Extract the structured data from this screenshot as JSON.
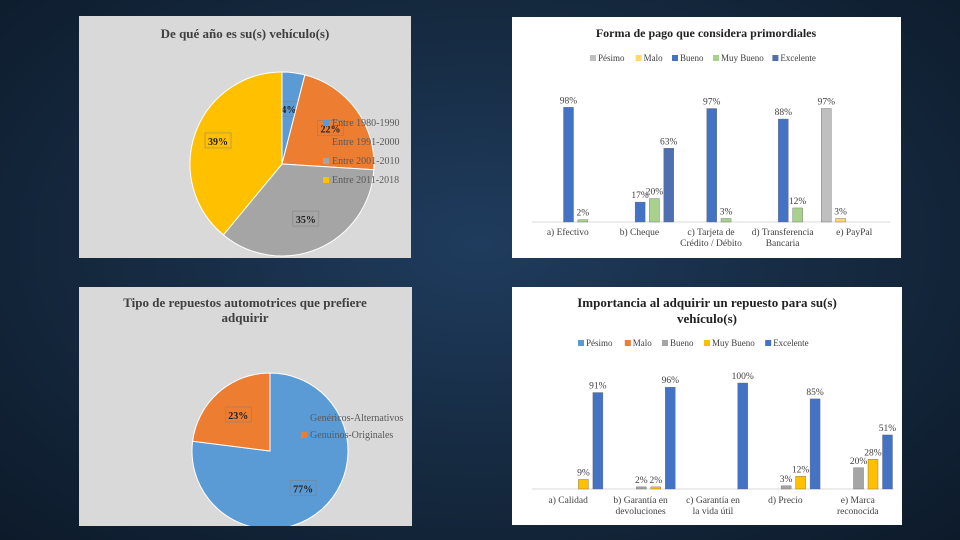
{
  "chart_data": [
    {
      "id": "p1",
      "type": "pie",
      "title": "De qué año es su(s) vehículo(s)",
      "categories": [
        "Entre 1980-1990",
        "Entre 1991-2000",
        "Entre 2001-2010",
        "Entre 2011-2018"
      ],
      "values": [
        4,
        22,
        35,
        39
      ],
      "data_labels": [
        "4%",
        "22%",
        "35%",
        "39%"
      ],
      "colors": [
        "#5b9bd5",
        "#ed7d31",
        "#a5a5a5",
        "#ffc000"
      ],
      "legend_position": "right",
      "background": "#d9d9d9"
    },
    {
      "id": "p2",
      "type": "bar",
      "title": "Forma de pago que considera primordiales",
      "legend_position": "top",
      "series": [
        {
          "name": "Pésimo",
          "color": "#bfbfbf",
          "values": [
            null,
            null,
            null,
            null,
            97
          ]
        },
        {
          "name": "Malo",
          "color": "#ffd966",
          "values": [
            null,
            null,
            null,
            null,
            3
          ]
        },
        {
          "name": "Bueno",
          "color": "#4472c4",
          "values": [
            98,
            17,
            97,
            88,
            null
          ]
        },
        {
          "name": "Muy Bueno",
          "color": "#a9d18e",
          "values": [
            2,
            20,
            3,
            12,
            null
          ]
        },
        {
          "name": "Excelente",
          "color": "#4f6fb0",
          "values": [
            null,
            63,
            null,
            null,
            null
          ]
        }
      ],
      "bars": [
        {
          "cat": 0,
          "series": 3,
          "value": 2,
          "label": "2%"
        },
        {
          "cat": 0,
          "series": 2,
          "value": 98,
          "label": "98%"
        },
        {
          "cat": 1,
          "series": 2,
          "value": 17,
          "label": "17%"
        },
        {
          "cat": 1,
          "series": 3,
          "value": 20,
          "label": "20%"
        },
        {
          "cat": 1,
          "series": 4,
          "value": 63,
          "label": "63%"
        },
        {
          "cat": 2,
          "series": 3,
          "value": 3,
          "label": "3%"
        },
        {
          "cat": 2,
          "series": 2,
          "value": 97,
          "label": "97%"
        },
        {
          "cat": 3,
          "series": 3,
          "value": 12,
          "label": "12%"
        },
        {
          "cat": 3,
          "series": 2,
          "value": 88,
          "label": "88%"
        },
        {
          "cat": 4,
          "series": 0,
          "value": 97,
          "label": "97%"
        },
        {
          "cat": 4,
          "series": 1,
          "value": 3,
          "label": "3%"
        }
      ],
      "categories": [
        [
          "a) Efectivo"
        ],
        [
          "b) Cheque"
        ],
        [
          "c) Tarjeta de",
          "Crédito / Débito"
        ],
        [
          "d) Transferencia",
          "Bancaria"
        ],
        [
          "e) PayPal"
        ]
      ],
      "ylim": [
        0,
        100
      ],
      "background": "#ffffff"
    },
    {
      "id": "p3",
      "type": "pie",
      "title_lines": [
        "Tipo de repuestos automotrices que prefiere",
        "adquirir"
      ],
      "categories": [
        "Genéricos-Alternativos",
        "Genuinos-Originales"
      ],
      "values": [
        77,
        23
      ],
      "data_labels": [
        "77%",
        "23%"
      ],
      "colors": [
        "#5b9bd5",
        "#ed7d31"
      ],
      "legend_position": "right",
      "background": "#d9d9d9"
    },
    {
      "id": "p4",
      "type": "bar",
      "title_lines": [
        "Importancia  al adquirir un repuesto para su(s)",
        "vehículo(s)"
      ],
      "legend_position": "top",
      "series": [
        {
          "name": "Pésimo",
          "color": "#5b9bd5"
        },
        {
          "name": "Malo",
          "color": "#ed7d31"
        },
        {
          "name": "Bueno",
          "color": "#a5a5a5"
        },
        {
          "name": "Muy Bueno",
          "color": "#ffc000"
        },
        {
          "name": "Excelente",
          "color": "#4472c4"
        }
      ],
      "bars": [
        {
          "cat": 0,
          "series": 3,
          "value": 9,
          "label": "9%"
        },
        {
          "cat": 0,
          "series": 4,
          "value": 91,
          "label": "91%"
        },
        {
          "cat": 1,
          "series": 2,
          "value": 2,
          "label": "2%"
        },
        {
          "cat": 1,
          "series": 3,
          "value": 2,
          "label": "2%"
        },
        {
          "cat": 1,
          "series": 4,
          "value": 96,
          "label": "96%"
        },
        {
          "cat": 2,
          "series": 4,
          "value": 100,
          "label": "100%"
        },
        {
          "cat": 3,
          "series": 2,
          "value": 3,
          "label": "3%"
        },
        {
          "cat": 3,
          "series": 3,
          "value": 12,
          "label": "12%"
        },
        {
          "cat": 3,
          "series": 4,
          "value": 85,
          "label": "85%"
        },
        {
          "cat": 4,
          "series": 2,
          "value": 20,
          "label": "20%"
        },
        {
          "cat": 4,
          "series": 3,
          "value": 28,
          "label": "28%"
        },
        {
          "cat": 4,
          "series": 4,
          "value": 51,
          "label": "51%"
        }
      ],
      "categories": [
        [
          "a) Calidad"
        ],
        [
          "b) Garantía en",
          "devoluciones"
        ],
        [
          "c) Garantía en",
          "la vida útil"
        ],
        [
          "d) Precio"
        ],
        [
          "e) Marca",
          "reconocida"
        ]
      ],
      "ylim": [
        0,
        100
      ],
      "background": "#ffffff"
    }
  ]
}
